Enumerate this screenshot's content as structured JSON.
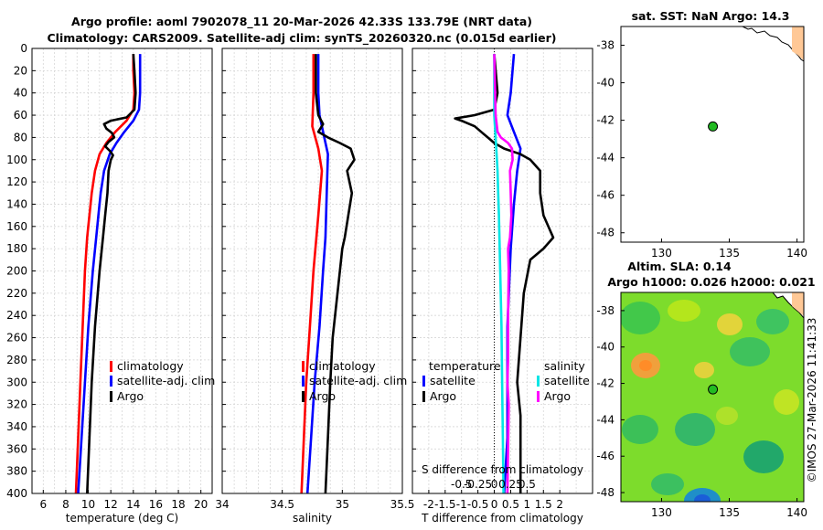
{
  "figure": {
    "title_line1": "Argo profile: aoml 7902078_11 20-Mar-2026 42.33S 133.79E (NRT data)",
    "title_line2": "Climatology: CARS2009. Satellite-adj clim: synTS_20260320.nc (0.015d earlier)",
    "timestamp": "©IMOS 27-Mar-2026 11:41:33"
  },
  "colors": {
    "climatology": "#ff0000",
    "satellite": "#0000ff",
    "argo": "#000000",
    "sal_satellite": "#00e5e5",
    "sal_argo": "#ff00ff",
    "land": "#ffc896",
    "marker": "#22bb22"
  },
  "chart_data": [
    {
      "id": "temperature",
      "type": "line",
      "xlabel": "temperature (deg C)",
      "xlim": [
        5,
        21
      ],
      "ylim": [
        400,
        0
      ],
      "xticks": [
        6,
        8,
        10,
        12,
        14,
        16,
        18,
        20
      ],
      "yticks": [
        0,
        20,
        40,
        60,
        80,
        100,
        120,
        140,
        160,
        180,
        200,
        220,
        240,
        260,
        280,
        300,
        320,
        340,
        360,
        380,
        400
      ],
      "legend": {
        "position": "lower-right",
        "entries": [
          "climatology",
          "satellite-adj. clim",
          "Argo"
        ]
      },
      "series": [
        {
          "name": "climatology",
          "color": "#ff0000",
          "depth": [
            5,
            20,
            40,
            55,
            65,
            75,
            85,
            95,
            110,
            130,
            150,
            170,
            200,
            250,
            300,
            350,
            400
          ],
          "values": [
            14.0,
            14.0,
            14.1,
            14.0,
            13.4,
            12.4,
            11.6,
            11.0,
            10.6,
            10.3,
            10.1,
            9.9,
            9.7,
            9.5,
            9.3,
            9.1,
            8.9
          ]
        },
        {
          "name": "satellite-adj. clim",
          "color": "#0000ff",
          "depth": [
            5,
            20,
            40,
            55,
            65,
            75,
            85,
            95,
            110,
            130,
            150,
            170,
            200,
            250,
            300,
            350,
            400
          ],
          "values": [
            14.6,
            14.6,
            14.6,
            14.5,
            14.0,
            13.2,
            12.5,
            11.9,
            11.4,
            11.1,
            10.9,
            10.7,
            10.4,
            10.0,
            9.7,
            9.4,
            9.1
          ]
        },
        {
          "name": "Argo",
          "color": "#000000",
          "depth": [
            5,
            20,
            40,
            55,
            62,
            65,
            68,
            72,
            76,
            80,
            84,
            88,
            92,
            96,
            100,
            110,
            130,
            150,
            170,
            200,
            250,
            300,
            350,
            400
          ],
          "values": [
            14.0,
            14.1,
            14.2,
            14.1,
            13.4,
            12.0,
            11.4,
            11.6,
            12.1,
            12.3,
            11.8,
            11.5,
            11.9,
            12.2,
            12.0,
            11.8,
            11.7,
            11.5,
            11.3,
            11.0,
            10.6,
            10.3,
            10.1,
            9.9
          ]
        }
      ]
    },
    {
      "id": "salinity",
      "type": "line",
      "xlabel": "salinity",
      "xlim": [
        34,
        35.5
      ],
      "ylim": [
        400,
        0
      ],
      "xticks": [
        34,
        34.5,
        35,
        35.5
      ],
      "legend": {
        "position": "lower-right",
        "entries": [
          "climatology",
          "satellite-adj. clim",
          "Argo"
        ]
      },
      "series": [
        {
          "name": "climatology",
          "color": "#ff0000",
          "depth": [
            5,
            40,
            70,
            90,
            110,
            150,
            200,
            250,
            300,
            350,
            400
          ],
          "values": [
            34.76,
            34.76,
            34.75,
            34.8,
            34.83,
            34.8,
            34.76,
            34.73,
            34.7,
            34.68,
            34.66
          ]
        },
        {
          "name": "satellite-adj. clim",
          "color": "#0000ff",
          "depth": [
            5,
            40,
            60,
            75,
            95,
            130,
            170,
            200,
            250,
            300,
            350,
            400
          ],
          "values": [
            34.8,
            34.8,
            34.81,
            34.84,
            34.88,
            34.87,
            34.86,
            34.84,
            34.81,
            34.77,
            34.74,
            34.71
          ]
        },
        {
          "name": "Argo",
          "color": "#000000",
          "depth": [
            5,
            40,
            60,
            68,
            75,
            80,
            85,
            90,
            100,
            110,
            120,
            130,
            150,
            170,
            180,
            200,
            260,
            300,
            350,
            400
          ],
          "values": [
            34.78,
            34.78,
            34.8,
            34.84,
            34.8,
            34.88,
            34.98,
            35.07,
            35.1,
            35.04,
            35.06,
            35.08,
            35.05,
            35.02,
            35.0,
            34.98,
            34.92,
            34.9,
            34.88,
            34.86
          ]
        }
      ]
    },
    {
      "id": "difference",
      "type": "line",
      "xlabel": "T difference from climatology",
      "x2label": "S difference from climatology",
      "xlim": [
        -2.5,
        3.0
      ],
      "ylim": [
        400,
        0
      ],
      "xticks": [
        -2,
        -1.5,
        -1,
        -0.5,
        0,
        0.5,
        1,
        1.5,
        2
      ],
      "xticklabels": [
        "-2",
        "-1.5",
        "-1",
        "-0.5",
        "0",
        "0.5",
        "1",
        "1.5",
        "2"
      ],
      "x2ticks": [
        -0.5,
        -0.25,
        0,
        0.25,
        0.5
      ],
      "x2ticklabels": [
        "-0.5",
        "-0.25",
        "0",
        "0.25",
        "0.5"
      ],
      "legend": {
        "position": "lower-right",
        "temperature_title": "temperature",
        "salinity_title": "salinity",
        "entries": [
          "satellite",
          "Argo",
          "satellite",
          "Argo"
        ]
      },
      "series": [
        {
          "name": "T satellite",
          "color": "#0000ff",
          "depth": [
            5,
            40,
            60,
            75,
            90,
            110,
            140,
            180,
            250,
            300,
            350,
            400
          ],
          "values": [
            0.6,
            0.5,
            0.4,
            0.6,
            0.8,
            0.7,
            0.6,
            0.5,
            0.4,
            0.4,
            0.4,
            0.3
          ]
        },
        {
          "name": "T Argo",
          "color": "#000000",
          "depth": [
            5,
            40,
            55,
            60,
            63,
            65,
            70,
            75,
            80,
            85,
            90,
            95,
            100,
            110,
            130,
            150,
            170,
            180,
            190,
            220,
            260,
            300,
            330,
            360,
            400
          ],
          "values": [
            0.0,
            0.1,
            0.0,
            -0.6,
            -1.2,
            -1.0,
            -0.6,
            -0.4,
            -0.2,
            0.0,
            0.3,
            0.8,
            1.1,
            1.4,
            1.4,
            1.5,
            1.8,
            1.5,
            1.1,
            0.9,
            0.8,
            0.7,
            0.8,
            0.8,
            0.8
          ]
        },
        {
          "name": "S satellite",
          "color": "#00e5e5",
          "depth": [
            5,
            60,
            90,
            110,
            130,
            150,
            200,
            250,
            300,
            350,
            400
          ],
          "values": [
            0.0,
            0.0,
            0.03,
            0.05,
            0.06,
            0.07,
            0.09,
            0.11,
            0.12,
            0.13,
            0.14
          ]
        },
        {
          "name": "S Argo",
          "color": "#ff00ff",
          "depth": [
            5,
            60,
            75,
            80,
            85,
            90,
            100,
            110,
            130,
            150,
            170,
            180,
            200,
            240,
            280,
            300,
            320,
            360,
            400
          ],
          "values": [
            0.0,
            0.02,
            0.05,
            0.1,
            0.21,
            0.27,
            0.28,
            0.24,
            0.25,
            0.26,
            0.24,
            0.21,
            0.22,
            0.21,
            0.21,
            0.2,
            0.22,
            0.21,
            0.2
          ]
        }
      ]
    },
    {
      "id": "sst_map",
      "type": "scatter",
      "title": "sat. SST: NaN Argo: 14.3",
      "xlim": [
        127,
        140.5
      ],
      "ylim": [
        -48.5,
        -37
      ],
      "xticks": [
        130,
        135,
        140
      ],
      "yticks": [
        -38,
        -40,
        -42,
        -44,
        -46,
        -48
      ],
      "points": [
        {
          "x": 133.79,
          "y": -42.33
        }
      ]
    },
    {
      "id": "sla_map",
      "type": "heatmap",
      "title_line1": "Altim. SLA: 0.14",
      "title_line2": "Argo h1000: 0.026 h2000: 0.021",
      "xlim": [
        127,
        140.5
      ],
      "ylim": [
        -48.5,
        -37
      ],
      "xticks": [
        130,
        135,
        140
      ],
      "yticks": [
        -38,
        -40,
        -42,
        -44,
        -46,
        -48
      ],
      "points": [
        {
          "x": 133.79,
          "y": -42.33
        }
      ]
    }
  ]
}
